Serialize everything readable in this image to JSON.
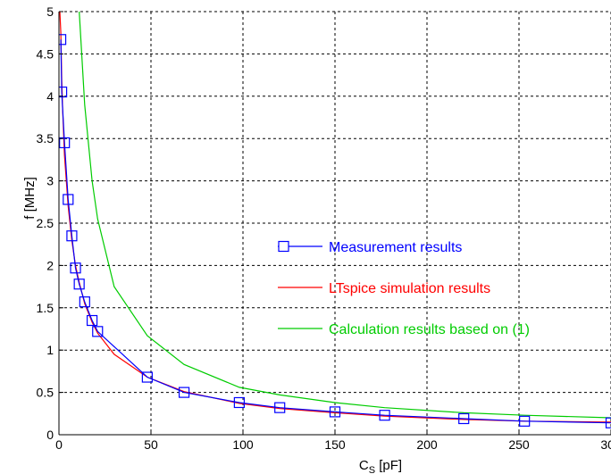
{
  "chart_data": {
    "type": "line",
    "title": "",
    "xlabel": "C",
    "xlabel_sub": "S",
    "xlabel_unit": " [pF]",
    "ylabel": "f [MHz]",
    "xlim": [
      0,
      300
    ],
    "ylim": [
      0,
      5
    ],
    "x_ticks": [
      0,
      50,
      100,
      150,
      200,
      250,
      300
    ],
    "x_tick_labels": [
      "0",
      "50",
      "100",
      "150",
      "200",
      "250",
      "300"
    ],
    "y_ticks": [
      0,
      0.5,
      1,
      1.5,
      2,
      2.5,
      3,
      3.5,
      4,
      4.5,
      5
    ],
    "y_tick_labels": [
      "0",
      "0.5",
      "1",
      "1.5",
      "2",
      "2.5",
      "3",
      "3.5",
      "4",
      "4.5",
      "5"
    ],
    "grid": true,
    "legend_position": "center-right",
    "series": [
      {
        "name": "Measurement results",
        "color": "#0000ff",
        "marker": "square",
        "x": [
          1,
          1.5,
          3,
          5,
          7,
          9,
          11,
          14,
          18,
          21,
          48,
          68,
          98,
          120,
          150,
          177,
          220,
          253,
          300
        ],
        "y": [
          4.67,
          4.05,
          3.45,
          2.78,
          2.35,
          1.97,
          1.78,
          1.57,
          1.35,
          1.22,
          0.68,
          0.5,
          0.38,
          0.32,
          0.27,
          0.23,
          0.19,
          0.16,
          0.14
        ]
      },
      {
        "name": "LTspice simulation results",
        "color": "#ff0000",
        "marker": "none",
        "x": [
          0.5,
          1,
          1.5,
          2,
          3,
          5,
          7,
          9,
          11,
          14,
          18,
          21,
          30,
          48,
          68,
          98,
          120,
          150,
          177,
          220,
          253,
          300
        ],
        "y": [
          5.0,
          4.75,
          4.2,
          3.85,
          3.3,
          2.7,
          2.3,
          2.0,
          1.8,
          1.55,
          1.33,
          1.2,
          0.95,
          0.68,
          0.51,
          0.37,
          0.31,
          0.26,
          0.22,
          0.18,
          0.16,
          0.15
        ]
      },
      {
        "name": "Calculation results based on (1)",
        "color": "#00cc00",
        "marker": "none",
        "x": [
          11,
          14,
          18,
          21,
          30,
          48,
          68,
          98,
          120,
          150,
          177,
          220,
          253,
          300
        ],
        "y": [
          5.0,
          3.9,
          3.0,
          2.55,
          1.75,
          1.17,
          0.83,
          0.56,
          0.47,
          0.38,
          0.32,
          0.26,
          0.23,
          0.2
        ]
      }
    ]
  }
}
